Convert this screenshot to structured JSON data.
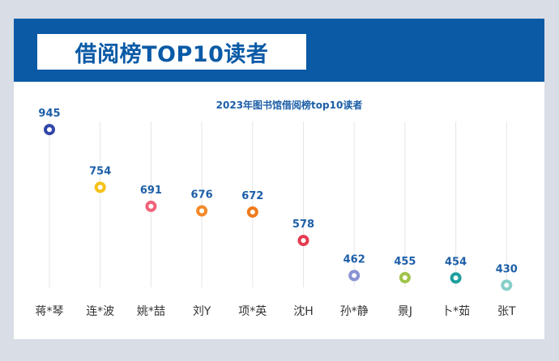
{
  "page": {
    "title": "借阅榜TOP10读者"
  },
  "chart_data": {
    "type": "scatter",
    "title": "2023年图书馆借阅榜top10读者",
    "xlabel": "",
    "ylabel": "",
    "categories": [
      "蒋*琴",
      "连*波",
      "姚*喆",
      "刘Y",
      "项*英",
      "沈H",
      "孙*静",
      "景J",
      "卜*茹",
      "张T"
    ],
    "values": [
      945,
      754,
      691,
      676,
      672,
      578,
      462,
      455,
      454,
      430
    ],
    "labels": [
      "945",
      "754",
      "691",
      "676",
      "672",
      "578",
      "462",
      "455",
      "454",
      "430"
    ],
    "colors": [
      "#3346a8",
      "#f6c21a",
      "#f0637a",
      "#f58a2a",
      "#f0791c",
      "#e43b4f",
      "#8a93d4",
      "#a0c44a",
      "#1f9e9e",
      "#86cfc9"
    ],
    "ylim": [
      380,
      980
    ],
    "grid": true,
    "gridlines": "vertical",
    "legend": "none",
    "colors_meta": {
      "title_color": "#0a5aa6",
      "header_band": "#0a5aa6",
      "label_color": "#1d5fa8",
      "grid_color": "#e6e6e6"
    }
  }
}
